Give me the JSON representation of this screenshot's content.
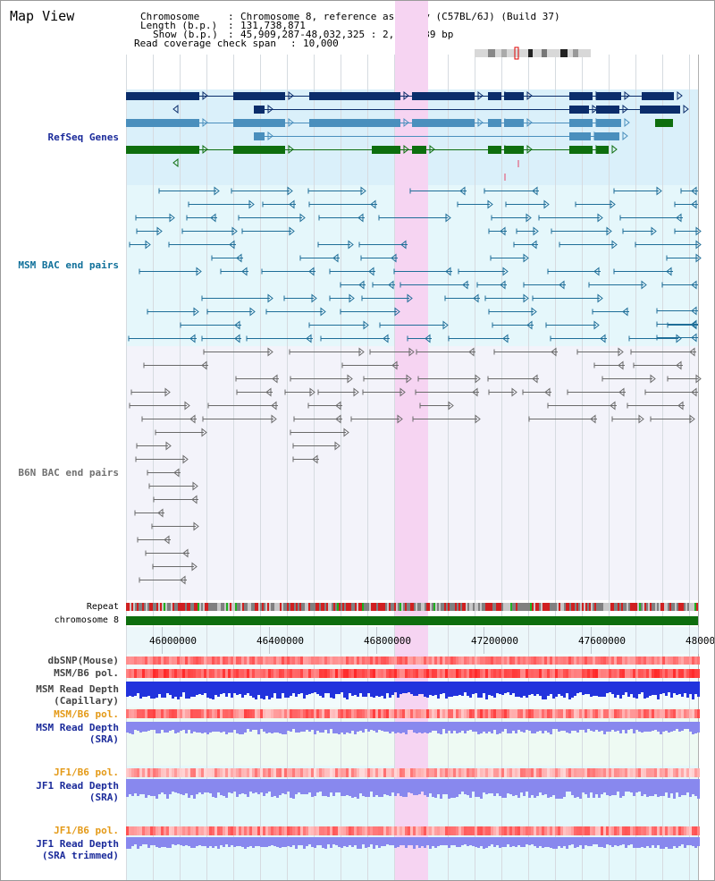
{
  "page": {
    "title": "Map View"
  },
  "header": {
    "chromosome_label": "Chromosome",
    "chromosome_value": "Chromosome 8, reference assembly (C57BL/6J) (Build 37)",
    "length_label": "Length (b.p.)",
    "length_value": "131,738,871",
    "show_label": "Show (b.p.)",
    "show_value": "45,909,287-48,032,325 : 2,123,039 bp",
    "coverage_label": "Read coverage check span",
    "coverage_value": "10,000"
  },
  "tracks": {
    "refseq": "RefSeq Genes",
    "msm_bac": "MSM BAC end pairs",
    "b6n_bac": "B6N BAC end pairs",
    "repeat": "Repeat",
    "chromosome": "chromosome 8",
    "dbsnp": "dbSNP(Mouse)",
    "msm_b6_pol": "MSM/B6 pol.",
    "msm_depth_1": "MSM Read Depth",
    "msm_depth_2": "(Capillary)",
    "msm_b6_pol_sra": "MSM/B6 pol.",
    "msm_sra_1": "MSM Read Depth",
    "msm_sra_2": "(SRA)",
    "jf1_pol": "JF1/B6 pol.",
    "jf1_sra_1": "JF1 Read Depth",
    "jf1_sra_2": "(SRA)",
    "jf1_pol_2": "JF1/B6 pol.",
    "jf1_trim_1": "JF1 Read Depth",
    "jf1_trim_2": "(SRA trimmed)"
  },
  "axis": {
    "ticks": [
      "46000000",
      "46400000",
      "46800000",
      "47200000",
      "47600000",
      "48000000"
    ]
  },
  "colors": {
    "highlight": "#f6d4f2",
    "refseq_bg": "#daf0fa",
    "msm_bg": "#e5f7fb",
    "b6n_bg": "#f3f3fa",
    "navy": "#0b2d6b",
    "steel": "#4a8fbd",
    "green": "#0e6e0e",
    "teal": "#1f6e98",
    "grey_line": "#6a6a6a",
    "depth_blue": "#2233dd",
    "depth_light": "#8888ee"
  }
}
